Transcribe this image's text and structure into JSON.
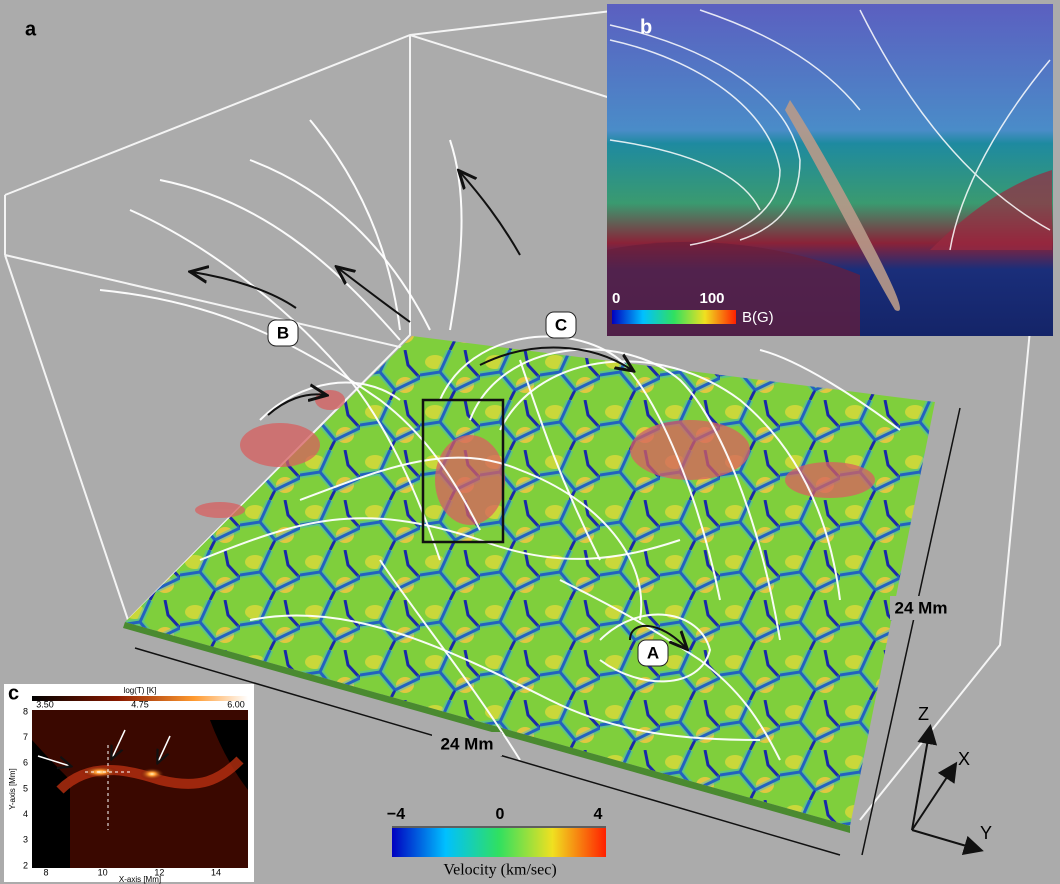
{
  "panels": {
    "a": {
      "label": "a",
      "regions": [
        "A",
        "B",
        "C"
      ],
      "scale_x": "24 Mm",
      "scale_y": "24 Mm",
      "axes": [
        "Z",
        "X",
        "Y"
      ],
      "colorbar": {
        "ticks": [
          "−4",
          "0",
          "4"
        ],
        "title": "Velocity (km/sec)"
      }
    },
    "b": {
      "label": "b",
      "colorbar": {
        "ticks": [
          "0",
          "100"
        ],
        "title": "B(G)"
      }
    },
    "c": {
      "label": "c",
      "colorbar": {
        "title": "log(T) [K]",
        "ticks": [
          "3.50",
          "4.75",
          "6.00"
        ]
      },
      "y_title": "Y-axis [Mm]",
      "x_title": "X-axis [Mm]",
      "yticks": [
        "8",
        "7",
        "6",
        "5",
        "4",
        "3",
        "2"
      ],
      "xticks": [
        "8",
        "10",
        "12",
        "14"
      ]
    }
  }
}
